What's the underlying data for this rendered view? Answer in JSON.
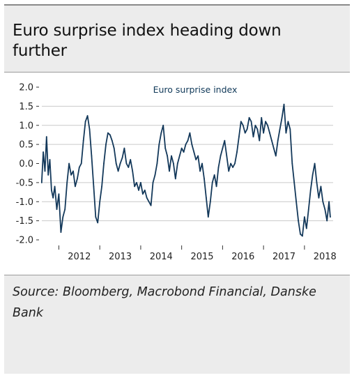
{
  "title": "Euro surprise index heading down further",
  "source": "Source: Bloomberg, Macrobond Financial, Danske Bank",
  "colors": {
    "line": "#13385a",
    "grid": "#c9c9c9",
    "background": "#ececec",
    "panel": "#ffffff"
  },
  "chart_data": {
    "type": "line",
    "title": "Euro surprise index",
    "ylim": [
      -2.0,
      2.0
    ],
    "yticks": [
      2.0,
      1.5,
      1.0,
      0.5,
      0.0,
      -0.5,
      -1.0,
      -1.5,
      -2.0
    ],
    "ytick_labels": [
      "2.0",
      "1.5",
      "1.0",
      "0.5",
      "0.0",
      "-0.5",
      "-1.0",
      "-1.5",
      "-2.0"
    ],
    "xlim": [
      2011.55,
      2018.7
    ],
    "xtick_labels": [
      "2012",
      "2013",
      "2014",
      "2015",
      "2016",
      "2017",
      "2018"
    ],
    "grid": "horizontal",
    "series": [
      {
        "name": "Euro surprise index",
        "x": [
          2011.58,
          2011.62,
          2011.66,
          2011.7,
          2011.74,
          2011.78,
          2011.82,
          2011.86,
          2011.9,
          2011.95,
          2012.0,
          2012.05,
          2012.1,
          2012.15,
          2012.2,
          2012.25,
          2012.3,
          2012.35,
          2012.4,
          2012.45,
          2012.5,
          2012.55,
          2012.6,
          2012.65,
          2012.7,
          2012.75,
          2012.8,
          2012.85,
          2012.9,
          2012.95,
          2013.0,
          2013.05,
          2013.1,
          2013.15,
          2013.2,
          2013.25,
          2013.3,
          2013.35,
          2013.4,
          2013.45,
          2013.5,
          2013.55,
          2013.6,
          2013.65,
          2013.7,
          2013.75,
          2013.8,
          2013.85,
          2013.9,
          2013.95,
          2014.0,
          2014.05,
          2014.1,
          2014.15,
          2014.2,
          2014.25,
          2014.3,
          2014.35,
          2014.4,
          2014.45,
          2014.5,
          2014.55,
          2014.6,
          2014.65,
          2014.7,
          2014.75,
          2014.8,
          2014.85,
          2014.9,
          2014.95,
          2015.0,
          2015.05,
          2015.1,
          2015.15,
          2015.2,
          2015.25,
          2015.3,
          2015.35,
          2015.4,
          2015.45,
          2015.5,
          2015.55,
          2015.6,
          2015.65,
          2015.7,
          2015.75,
          2015.8,
          2015.85,
          2015.9,
          2015.95,
          2016.0,
          2016.05,
          2016.1,
          2016.15,
          2016.2,
          2016.25,
          2016.3,
          2016.35,
          2016.4,
          2016.45,
          2016.5,
          2016.55,
          2016.6,
          2016.65,
          2016.7,
          2016.75,
          2016.8,
          2016.85,
          2016.9,
          2016.95,
          2017.0,
          2017.05,
          2017.1,
          2017.15,
          2017.2,
          2017.25,
          2017.3,
          2017.35,
          2017.4,
          2017.45,
          2017.5,
          2017.55,
          2017.6,
          2017.65,
          2017.7,
          2017.75,
          2017.8,
          2017.85,
          2017.9,
          2017.95,
          2018.0,
          2018.05,
          2018.1,
          2018.15,
          2018.2,
          2018.25,
          2018.3,
          2018.35,
          2018.4,
          2018.45,
          2018.5,
          2018.55,
          2018.6,
          2018.63
        ],
        "y": [
          -0.5,
          0.3,
          -0.2,
          0.7,
          -0.3,
          0.1,
          -0.7,
          -0.9,
          -0.6,
          -1.2,
          -0.8,
          -1.8,
          -1.4,
          -1.2,
          -0.5,
          0.0,
          -0.3,
          -0.2,
          -0.6,
          -0.4,
          -0.1,
          0.0,
          0.6,
          1.1,
          1.25,
          0.9,
          0.2,
          -0.6,
          -1.4,
          -1.55,
          -1.0,
          -0.6,
          0.0,
          0.5,
          0.8,
          0.75,
          0.6,
          0.4,
          0.0,
          -0.2,
          0.0,
          0.15,
          0.4,
          0.0,
          -0.1,
          0.1,
          -0.2,
          -0.6,
          -0.5,
          -0.7,
          -0.5,
          -0.8,
          -0.7,
          -0.9,
          -1.0,
          -1.1,
          -0.5,
          -0.3,
          0.0,
          0.5,
          0.8,
          1.0,
          0.4,
          0.2,
          -0.2,
          0.2,
          0.0,
          -0.4,
          0.0,
          0.2,
          0.4,
          0.3,
          0.5,
          0.6,
          0.8,
          0.5,
          0.3,
          0.1,
          0.2,
          -0.2,
          0.0,
          -0.4,
          -0.9,
          -1.4,
          -1.0,
          -0.5,
          -0.3,
          -0.6,
          -0.1,
          0.2,
          0.4,
          0.6,
          0.2,
          -0.2,
          0.0,
          -0.1,
          0.0,
          0.3,
          0.7,
          1.1,
          1.0,
          0.8,
          0.9,
          1.2,
          1.1,
          0.7,
          1.0,
          0.9,
          0.6,
          1.2,
          0.8,
          1.1,
          1.0,
          0.8,
          0.6,
          0.4,
          0.2,
          0.6,
          0.9,
          1.2,
          1.55,
          0.8,
          1.1,
          0.9,
          0.0,
          -0.5,
          -1.0,
          -1.5,
          -1.85,
          -1.9,
          -1.4,
          -1.7,
          -1.2,
          -0.7,
          -0.3,
          0.0,
          -0.5,
          -0.9,
          -0.6,
          -1.0,
          -1.2,
          -1.5,
          -1.0,
          -1.4
        ]
      }
    ]
  }
}
